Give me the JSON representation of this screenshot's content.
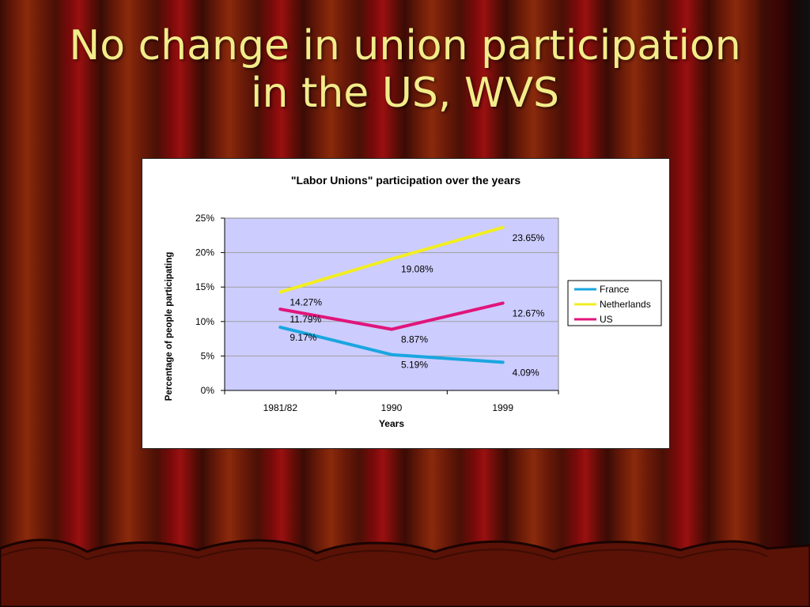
{
  "slide_title_lines": [
    "No change in union participation",
    "in the US, WVS"
  ],
  "chart_data": {
    "type": "line",
    "title": "\"Labor Unions\" participation over the years",
    "xlabel": "Years",
    "ylabel": "Percentage of people participating",
    "categories": [
      "1981/82",
      "1990",
      "1999"
    ],
    "ylim": [
      0,
      25
    ],
    "yticks": [
      "0%",
      "5%",
      "10%",
      "15%",
      "20%",
      "25%"
    ],
    "series": [
      {
        "name": "France",
        "values": [
          9.17,
          5.19,
          4.09
        ],
        "labels": [
          "9.17%",
          "5.19%",
          "4.09%"
        ],
        "color": "#1aa6e0"
      },
      {
        "name": "Netherlands",
        "values": [
          14.27,
          19.08,
          23.65
        ],
        "labels": [
          "14.27%",
          "19.08%",
          "23.65%"
        ],
        "color": "#f2ee22"
      },
      {
        "name": "US",
        "values": [
          11.79,
          8.87,
          12.67
        ],
        "labels": [
          "11.79%",
          "8.87%",
          "12.67%"
        ],
        "color": "#e0157a"
      }
    ],
    "grid": true,
    "legend": "right",
    "plot_background": "#ccccff"
  }
}
